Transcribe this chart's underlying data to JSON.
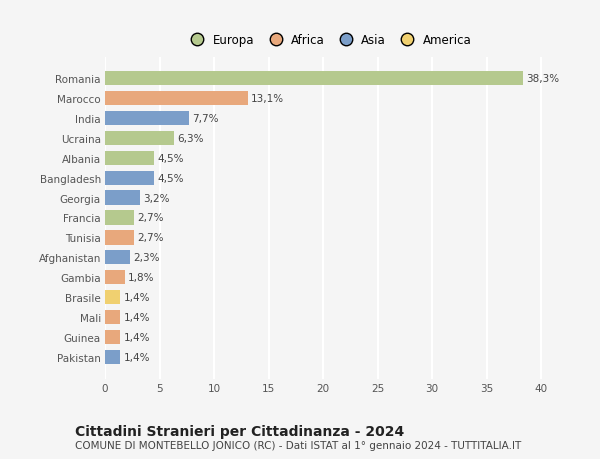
{
  "countries": [
    "Romania",
    "Marocco",
    "India",
    "Ucraina",
    "Albania",
    "Bangladesh",
    "Georgia",
    "Francia",
    "Tunisia",
    "Afghanistan",
    "Gambia",
    "Brasile",
    "Mali",
    "Guinea",
    "Pakistan"
  ],
  "values": [
    38.3,
    13.1,
    7.7,
    6.3,
    4.5,
    4.5,
    3.2,
    2.7,
    2.7,
    2.3,
    1.8,
    1.4,
    1.4,
    1.4,
    1.4
  ],
  "labels": [
    "38,3%",
    "13,1%",
    "7,7%",
    "6,3%",
    "4,5%",
    "4,5%",
    "3,2%",
    "2,7%",
    "2,7%",
    "2,3%",
    "1,8%",
    "1,4%",
    "1,4%",
    "1,4%",
    "1,4%"
  ],
  "continents": [
    "Europa",
    "Africa",
    "Asia",
    "Europa",
    "Europa",
    "Asia",
    "Asia",
    "Europa",
    "Africa",
    "Asia",
    "Africa",
    "America",
    "Africa",
    "Africa",
    "Asia"
  ],
  "colors": {
    "Europa": "#b5c98e",
    "Africa": "#e8a87c",
    "Asia": "#7b9ec9",
    "America": "#f0d070"
  },
  "xlim": [
    0,
    41
  ],
  "xticks": [
    0,
    5,
    10,
    15,
    20,
    25,
    30,
    35,
    40
  ],
  "title": "Cittadini Stranieri per Cittadinanza - 2024",
  "subtitle": "COMUNE DI MONTEBELLO JONICO (RC) - Dati ISTAT al 1° gennaio 2024 - TUTTITALIA.IT",
  "background_color": "#f5f5f5",
  "grid_color": "#ffffff",
  "bar_height": 0.72,
  "title_fontsize": 10,
  "subtitle_fontsize": 7.5,
  "label_fontsize": 7.5,
  "tick_fontsize": 7.5,
  "legend_fontsize": 8.5
}
